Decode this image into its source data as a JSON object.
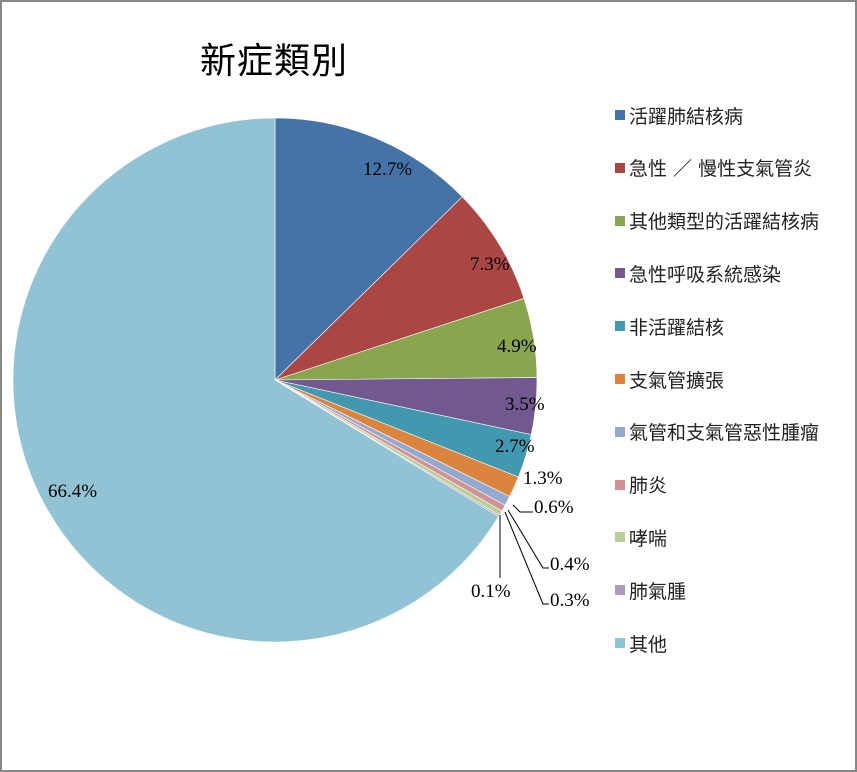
{
  "chart_data": {
    "type": "pie",
    "title": "新症類別",
    "legend_position": "right",
    "categories": [
      "活躍肺結核病",
      "急性 / 慢性支氣管炎",
      "其他類型的活躍結核病",
      "急性呼吸系統感染",
      "非活躍結核",
      "支氣管擴張",
      "氣管和支氣管惡性腫瘤",
      "肺炎",
      "哮喘",
      "肺氣腫",
      "其他"
    ],
    "values": [
      12.7,
      7.3,
      4.9,
      3.5,
      2.7,
      1.3,
      0.6,
      0.4,
      0.3,
      0.1,
      66.4
    ],
    "labels": [
      "12.7%",
      "7.3%",
      "4.9%",
      "3.5%",
      "2.7%",
      "1.3%",
      "0.6%",
      "0.4%",
      "0.3%",
      "0.1%",
      "66.4%"
    ],
    "colors": [
      "#4572A7",
      "#AA4643",
      "#89A54E",
      "#71588F",
      "#4198AF",
      "#DB843D",
      "#93A9CF",
      "#D19392",
      "#B9CD96",
      "#A99BBD",
      "#92C3D5"
    ],
    "start_angle_deg": 0,
    "direction": "clockwise"
  },
  "legend": {
    "items": [
      {
        "label": "活躍肺結核病",
        "color": "#4572A7"
      },
      {
        "label": "急性 ／ 慢性支氣管炎",
        "color": "#AA4643"
      },
      {
        "label": "其他類型的活躍結核病",
        "color": "#89A54E"
      },
      {
        "label": "急性呼吸系統感染",
        "color": "#71588F"
      },
      {
        "label": "非活躍結核",
        "color": "#4198AF"
      },
      {
        "label": "支氣管擴張",
        "color": "#DB843D"
      },
      {
        "label": "氣管和支氣管惡性腫瘤",
        "color": "#93A9CF"
      },
      {
        "label": "肺炎",
        "color": "#D19392"
      },
      {
        "label": "哮喘",
        "color": "#B9CD96"
      },
      {
        "label": "肺氣腫",
        "color": "#A99BBD"
      },
      {
        "label": "其他",
        "color": "#92C3D5"
      }
    ]
  }
}
